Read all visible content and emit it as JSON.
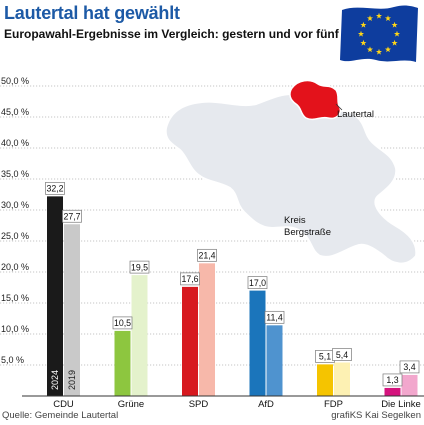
{
  "header": {
    "title": "Lautertal hat gewählt",
    "subtitle": "Europawahl-Ergebnisse im Vergleich: gestern und vor fünf Jahren"
  },
  "footer": {
    "source": "Quelle: Gemeinde Lautertal",
    "credit": "grafiKS Kai Segelken"
  },
  "map": {
    "label_lautertal": "Lautertal",
    "label_kreis_line1": "Kreis",
    "label_kreis_line2": "Bergstraße",
    "highlight_color": "#e3121b",
    "district_color": "#e6e9ee"
  },
  "chart_data": {
    "type": "bar",
    "categories": [
      "CDU",
      "Grüne",
      "SPD",
      "AfD",
      "FDP",
      "Die Linke"
    ],
    "series": [
      {
        "name": "2024",
        "values": [
          32.2,
          10.5,
          17.6,
          17.0,
          5.1,
          1.3
        ],
        "colors": [
          "#1a1a1a",
          "#8dc63f",
          "#d7191f",
          "#1b75bb",
          "#f5c400",
          "#d4137d"
        ]
      },
      {
        "name": "2019",
        "values": [
          27.7,
          19.5,
          21.4,
          11.4,
          5.4,
          3.4
        ],
        "colors": [
          "#c9c9c9",
          "#e4f2cc",
          "#f7b8aa",
          "#4f93cf",
          "#fdf1b3",
          "#f2a7cd"
        ]
      }
    ],
    "value_labels": {
      "2024": [
        "32,2",
        "10,5",
        "17,6",
        "17,0",
        "5,1",
        "1,3"
      ],
      "2019": [
        "27,7",
        "19,5",
        "21,4",
        "11,4",
        "5,4",
        "3,4"
      ]
    },
    "yticks": [
      5,
      10,
      15,
      20,
      25,
      30,
      35,
      40,
      45,
      50
    ],
    "ytick_labels": [
      "5,0 %",
      "10,0 %",
      "15,0 %",
      "20,0 %",
      "25,0 %",
      "30,0 %",
      "35,0 %",
      "40,0 %",
      "45,0 %",
      "50,0 %"
    ],
    "ylim": [
      0,
      50
    ],
    "grid": true,
    "bar_year_labels": [
      "2024",
      "2019"
    ]
  }
}
